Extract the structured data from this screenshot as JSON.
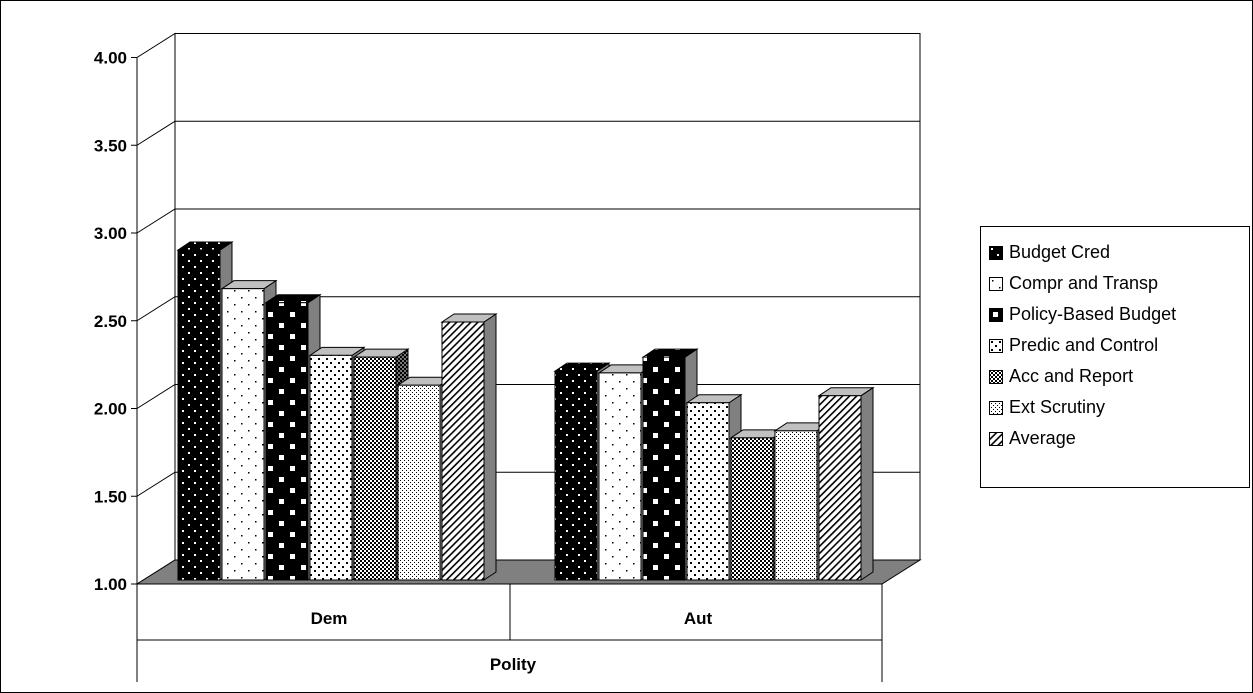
{
  "chart_data": {
    "type": "bar",
    "style": "3d-clustered-column",
    "title": "",
    "xlabel": "Polity",
    "ylabel": "",
    "ylim": [
      1.0,
      4.0
    ],
    "y_ticks": [
      "1.00",
      "1.50",
      "2.00",
      "2.50",
      "3.00",
      "3.50",
      "4.00"
    ],
    "grid": true,
    "legend_position": "right",
    "categories": [
      "Dem",
      "Aut"
    ],
    "series": [
      {
        "name": "Budget Cred",
        "values": [
          2.88,
          2.19
        ],
        "pattern": "black-white-dots"
      },
      {
        "name": "Compr and Transp",
        "values": [
          2.66,
          2.18
        ],
        "pattern": "white-sparse-dots"
      },
      {
        "name": "Policy-Based Budget",
        "values": [
          2.58,
          2.27
        ],
        "pattern": "black-white-squares"
      },
      {
        "name": "Predic and Control",
        "values": [
          2.28,
          2.01
        ],
        "pattern": "white-black-dots"
      },
      {
        "name": "Acc and Report",
        "values": [
          2.27,
          1.81
        ],
        "pattern": "dense-checker"
      },
      {
        "name": "Ext Scrutiny",
        "values": [
          2.11,
          1.85
        ],
        "pattern": "white-fine-dots"
      },
      {
        "name": "Average",
        "values": [
          2.47,
          2.05
        ],
        "pattern": "diagonal-stripes"
      }
    ]
  }
}
